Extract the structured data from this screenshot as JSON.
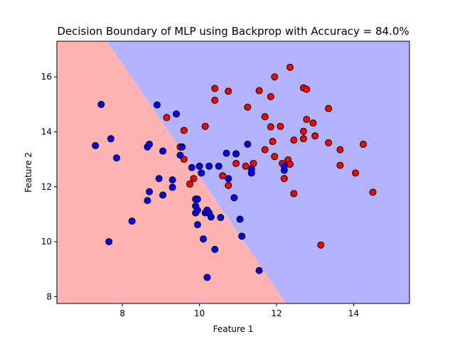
{
  "chart_data": {
    "type": "scatter",
    "title": "Decision Boundary of MLP using Backprop with Accuracy = 84.0%",
    "xlabel": "Feature 1",
    "ylabel": "Feature 2",
    "xlim": [
      6.3,
      15.45
    ],
    "ylim": [
      7.75,
      17.3
    ],
    "xticks": [
      8,
      10,
      12,
      14
    ],
    "yticks": [
      8,
      10,
      12,
      14,
      16
    ],
    "grid": false,
    "legend": "none",
    "decision_boundary": {
      "line": [
        [
          7.6,
          17.3
        ],
        [
          12.25,
          7.75
        ]
      ],
      "left_region_color": "#ffb3b3",
      "right_region_color": "#b3b3ff"
    },
    "series": [
      {
        "color": "#ff0000",
        "points": [
          [
            9.15,
            14.52
          ],
          [
            9.6,
            14.05
          ],
          [
            9.5,
            13.45
          ],
          [
            9.6,
            13.0
          ],
          [
            9.75,
            12.1
          ],
          [
            9.85,
            12.3
          ],
          [
            10.15,
            14.2
          ],
          [
            10.4,
            15.58
          ],
          [
            10.4,
            15.15
          ],
          [
            10.75,
            15.48
          ],
          [
            10.95,
            13.2
          ],
          [
            10.95,
            12.85
          ],
          [
            10.6,
            12.4
          ],
          [
            10.75,
            12.05
          ],
          [
            11.2,
            12.75
          ],
          [
            11.25,
            14.9
          ],
          [
            11.4,
            12.85
          ],
          [
            11.55,
            15.5
          ],
          [
            11.7,
            14.55
          ],
          [
            11.7,
            13.35
          ],
          [
            11.85,
            15.28
          ],
          [
            11.85,
            14.18
          ],
          [
            11.9,
            13.65
          ],
          [
            11.95,
            16.0
          ],
          [
            11.95,
            13.1
          ],
          [
            12.1,
            14.2
          ],
          [
            12.15,
            12.85
          ],
          [
            12.2,
            12.3
          ],
          [
            12.3,
            12.98
          ],
          [
            12.35,
            16.35
          ],
          [
            12.35,
            12.82
          ],
          [
            12.45,
            11.75
          ],
          [
            12.45,
            13.7
          ],
          [
            12.7,
            15.6
          ],
          [
            12.7,
            14.02
          ],
          [
            12.7,
            13.75
          ],
          [
            12.78,
            15.55
          ],
          [
            12.78,
            14.45
          ],
          [
            12.95,
            14.32
          ],
          [
            13.0,
            13.85
          ],
          [
            13.15,
            9.88
          ],
          [
            13.35,
            14.85
          ],
          [
            13.35,
            13.6
          ],
          [
            13.65,
            13.35
          ],
          [
            13.65,
            12.78
          ],
          [
            14.05,
            12.5
          ],
          [
            14.25,
            13.55
          ],
          [
            14.5,
            11.8
          ]
        ]
      },
      {
        "color": "#0000ff",
        "points": [
          [
            7.3,
            13.5
          ],
          [
            7.45,
            15.0
          ],
          [
            7.65,
            10.0
          ],
          [
            7.7,
            13.75
          ],
          [
            7.85,
            13.05
          ],
          [
            8.25,
            10.75
          ],
          [
            8.65,
            13.45
          ],
          [
            8.7,
            13.55
          ],
          [
            8.65,
            11.5
          ],
          [
            8.7,
            11.82
          ],
          [
            8.9,
            14.98
          ],
          [
            8.95,
            12.3
          ],
          [
            9.05,
            13.3
          ],
          [
            9.05,
            11.7
          ],
          [
            9.3,
            12.25
          ],
          [
            9.3,
            11.98
          ],
          [
            9.4,
            14.65
          ],
          [
            9.5,
            13.15
          ],
          [
            9.55,
            13.45
          ],
          [
            9.8,
            12.7
          ],
          [
            9.9,
            11.55
          ],
          [
            9.9,
            11.3
          ],
          [
            9.9,
            11.05
          ],
          [
            9.95,
            11.55
          ],
          [
            10.0,
            12.75
          ],
          [
            9.95,
            11.15
          ],
          [
            10.05,
            12.5
          ],
          [
            9.95,
            10.62
          ],
          [
            10.1,
            10.1
          ],
          [
            10.15,
            11.05
          ],
          [
            10.2,
            11.15
          ],
          [
            10.2,
            8.7
          ],
          [
            10.25,
            12.75
          ],
          [
            10.25,
            11.05
          ],
          [
            10.3,
            10.9
          ],
          [
            10.4,
            9.72
          ],
          [
            10.5,
            12.75
          ],
          [
            10.55,
            10.88
          ],
          [
            10.7,
            13.22
          ],
          [
            10.75,
            12.3
          ],
          [
            10.9,
            11.6
          ],
          [
            10.95,
            13.2
          ],
          [
            11.05,
            10.82
          ],
          [
            11.1,
            10.2
          ],
          [
            11.25,
            13.55
          ],
          [
            11.35,
            12.65
          ],
          [
            11.35,
            12.5
          ],
          [
            11.55,
            8.95
          ],
          [
            12.2,
            12.6
          ],
          [
            12.2,
            12.75
          ]
        ]
      }
    ]
  }
}
